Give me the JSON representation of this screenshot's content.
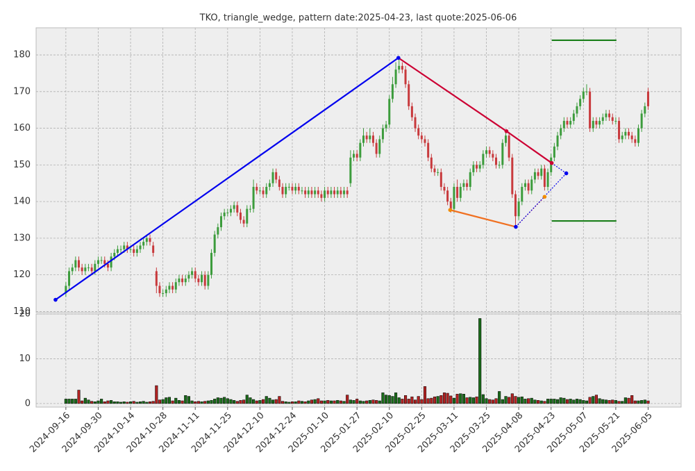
{
  "chart_data": [
    {
      "type": "candlestick",
      "title": "TKO, triangle_wedge, pattern date:2025-04-23, last quote:2025-06-06",
      "open": [
        115,
        117,
        121,
        122,
        124,
        122,
        121,
        122,
        122,
        121,
        123,
        124,
        124,
        123,
        122,
        125,
        126,
        127,
        127,
        128,
        127,
        127,
        126,
        127,
        128,
        129,
        130,
        128,
        121,
        117,
        115,
        115,
        116,
        117,
        116,
        118,
        119,
        118,
        119,
        120,
        121,
        119,
        118,
        120,
        117,
        120,
        126,
        131,
        133,
        136,
        137,
        137,
        138,
        139,
        137,
        135,
        134,
        138,
        138,
        144,
        143,
        143,
        142,
        144,
        145,
        148,
        146,
        144,
        142,
        144,
        144,
        143,
        144,
        143,
        143,
        142,
        143,
        142,
        143,
        142,
        141,
        143,
        142,
        143,
        142,
        143,
        142,
        143,
        145,
        152,
        153,
        152,
        156,
        158,
        157,
        158,
        156,
        153,
        157,
        160,
        161,
        168,
        172,
        176,
        177,
        176,
        172,
        166,
        163,
        160,
        158,
        157,
        156,
        152,
        149,
        148,
        148,
        144,
        143,
        140,
        138,
        144,
        141,
        144,
        145,
        144,
        148,
        150,
        149,
        150,
        153,
        154,
        153,
        152,
        150,
        150,
        156,
        158,
        152,
        142,
        136,
        140,
        144,
        145,
        143,
        146,
        148,
        147,
        149,
        144,
        148,
        152,
        155,
        158,
        160,
        162,
        161,
        162,
        164,
        166,
        168,
        170,
        170,
        160,
        162,
        161,
        162,
        163,
        164,
        163,
        162,
        162,
        157,
        158,
        159,
        158,
        157,
        156,
        160,
        164,
        170
      ],
      "high": [
        118,
        122,
        123,
        125,
        125,
        123,
        123,
        123,
        123,
        124,
        125,
        125,
        125,
        124,
        126,
        127,
        128,
        128,
        129,
        129,
        128,
        128,
        128,
        129,
        130,
        131,
        131,
        129,
        122,
        118,
        116,
        117,
        118,
        118,
        119,
        120,
        120,
        120,
        121,
        122,
        122,
        120,
        121,
        121,
        121,
        127,
        132,
        134,
        137,
        138,
        138,
        139,
        140,
        140,
        138,
        136,
        139,
        139,
        146,
        145,
        144,
        144,
        145,
        146,
        149,
        149,
        147,
        145,
        145,
        145,
        145,
        145,
        145,
        144,
        144,
        144,
        144,
        144,
        144,
        143,
        144,
        144,
        144,
        144,
        144,
        144,
        144,
        144,
        154,
        154,
        154,
        157,
        160,
        159,
        160,
        159,
        157,
        158,
        161,
        162,
        169,
        174,
        178,
        179,
        178,
        177,
        173,
        167,
        164,
        161,
        159,
        158,
        157,
        153,
        150,
        149,
        149,
        145,
        144,
        141,
        145,
        146,
        145,
        146,
        146,
        149,
        151,
        151,
        151,
        154,
        155,
        155,
        154,
        153,
        151,
        157,
        159,
        159,
        153,
        143,
        141,
        145,
        146,
        146,
        147,
        149,
        149,
        150,
        150,
        149,
        153,
        156,
        159,
        161,
        163,
        163,
        163,
        165,
        167,
        169,
        171,
        172,
        171,
        163,
        163,
        163,
        164,
        165,
        165,
        164,
        163,
        163,
        159,
        160,
        160,
        159,
        158,
        161,
        165,
        167,
        171
      ],
      "low": [
        114,
        116,
        120,
        121,
        121,
        120,
        120,
        121,
        120,
        120,
        122,
        123,
        122,
        121,
        121,
        124,
        125,
        126,
        126,
        126,
        126,
        125,
        125,
        126,
        127,
        128,
        128,
        125,
        115,
        114,
        114,
        114,
        115,
        115,
        115,
        117,
        117,
        117,
        118,
        119,
        118,
        117,
        117,
        116,
        116,
        119,
        125,
        130,
        132,
        135,
        136,
        136,
        137,
        136,
        134,
        133,
        133,
        137,
        137,
        142,
        142,
        141,
        141,
        143,
        144,
        145,
        143,
        141,
        141,
        143,
        142,
        142,
        142,
        142,
        141,
        141,
        141,
        141,
        141,
        140,
        140,
        141,
        141,
        141,
        141,
        141,
        141,
        141,
        144,
        151,
        151,
        151,
        155,
        156,
        156,
        155,
        152,
        152,
        156,
        159,
        160,
        167,
        171,
        175,
        175,
        171,
        165,
        162,
        159,
        157,
        156,
        155,
        151,
        148,
        147,
        147,
        143,
        142,
        139,
        137,
        137,
        140,
        140,
        143,
        143,
        143,
        147,
        148,
        148,
        149,
        152,
        152,
        151,
        149,
        149,
        149,
        155,
        151,
        141,
        133,
        135,
        139,
        143,
        142,
        142,
        145,
        146,
        146,
        143,
        143,
        147,
        151,
        154,
        157,
        159,
        160,
        160,
        161,
        163,
        165,
        167,
        169,
        159,
        159,
        160,
        160,
        161,
        162,
        162,
        161,
        161,
        156,
        156,
        157,
        157,
        156,
        155,
        155,
        159,
        163,
        165
      ],
      "close": [
        117,
        121,
        122,
        124,
        122,
        121,
        122,
        122,
        121,
        123,
        124,
        124,
        123,
        122,
        125,
        126,
        127,
        127,
        128,
        127,
        127,
        126,
        127,
        128,
        129,
        130,
        129,
        126,
        117,
        115,
        115,
        116,
        117,
        116,
        118,
        119,
        118,
        119,
        120,
        121,
        119,
        118,
        120,
        117,
        120,
        126,
        131,
        133,
        136,
        137,
        137,
        138,
        139,
        137,
        135,
        134,
        138,
        138,
        144,
        143,
        143,
        142,
        144,
        145,
        148,
        146,
        144,
        142,
        144,
        144,
        143,
        144,
        143,
        143,
        142,
        143,
        142,
        143,
        142,
        141,
        143,
        142,
        143,
        142,
        143,
        142,
        143,
        142,
        152,
        153,
        152,
        156,
        158,
        157,
        158,
        156,
        153,
        157,
        160,
        161,
        168,
        172,
        176,
        177,
        176,
        172,
        166,
        163,
        160,
        158,
        157,
        156,
        152,
        149,
        148,
        148,
        144,
        143,
        140,
        138,
        144,
        141,
        144,
        145,
        144,
        148,
        150,
        149,
        150,
        153,
        154,
        153,
        152,
        150,
        150,
        156,
        158,
        152,
        142,
        136,
        140,
        144,
        145,
        143,
        146,
        148,
        147,
        149,
        144,
        148,
        152,
        155,
        158,
        160,
        162,
        161,
        162,
        164,
        166,
        168,
        170,
        170,
        160,
        162,
        161,
        162,
        163,
        164,
        163,
        162,
        162,
        157,
        158,
        159,
        158,
        157,
        156,
        160,
        164,
        166,
        166
      ],
      "up_color": "#3c9c3c",
      "down_color": "#c8393c",
      "xlim": [
        -9.2,
        190.2
      ],
      "ylim": [
        109.7,
        187.4
      ],
      "yticks": [
        110,
        120,
        130,
        140,
        150,
        160,
        170,
        180
      ],
      "grid": true,
      "overlays": [
        {
          "color": "#0000ee",
          "dashed": false,
          "x": [
            -3.2,
            102.8
          ],
          "y": [
            113.2,
            179.2
          ]
        },
        {
          "color": "#cc0033",
          "dashed": false,
          "x": [
            102.8,
            136.2,
            150.2
          ],
          "y": [
            179.2,
            159.2,
            150.5
          ]
        },
        {
          "color": "#f07020",
          "dashed": false,
          "x": [
            118.8,
            139.1
          ],
          "y": [
            137.7,
            133.1
          ]
        },
        {
          "color": "#dd2222",
          "dashed": true,
          "x": [
            139.1,
            148.0
          ],
          "y": [
            133.1,
            141.3
          ]
        },
        {
          "color": "#0000ee",
          "dashed": true,
          "x": [
            139.1,
            154.7
          ],
          "y": [
            133.1,
            147.7
          ]
        },
        {
          "color": "#0000ee",
          "dashed": true,
          "x": [
            150.2,
            154.7
          ],
          "y": [
            150.5,
            147.7
          ]
        },
        {
          "color": "#1a7f1a",
          "dashed": false,
          "x": [
            150.2,
            170.2
          ],
          "y": [
            184.0,
            184.0
          ]
        },
        {
          "color": "#1a7f1a",
          "dashed": false,
          "x": [
            150.2,
            170.2
          ],
          "y": [
            134.7,
            134.7
          ]
        }
      ],
      "points": [
        {
          "color": "#0000ee",
          "x": [
            -3.2,
            102.8,
            139.1,
            154.7
          ],
          "y": [
            113.2,
            179.2,
            133.1,
            147.7
          ]
        },
        {
          "color": "#cc0033",
          "x": [
            136.2,
            150.2
          ],
          "y": [
            159.2,
            150.5
          ]
        },
        {
          "color": "#f08c00",
          "x": [
            118.8,
            148.0
          ],
          "y": [
            137.7,
            141.3
          ]
        }
      ]
    },
    {
      "type": "bar",
      "values": [
        1,
        1,
        1,
        1,
        3,
        0.6,
        1.2,
        0.8,
        0.5,
        0.4,
        0.6,
        1,
        0.4,
        0.6,
        0.7,
        0.4,
        0.4,
        0.3,
        0.4,
        0.3,
        0.4,
        0.5,
        0.3,
        0.4,
        0.5,
        0.3,
        0.4,
        0.5,
        4,
        0.8,
        0.9,
        1.3,
        1.4,
        0.6,
        1.2,
        0.7,
        0.6,
        1.8,
        1.6,
        0.6,
        0.4,
        0.5,
        0.4,
        0.5,
        0.6,
        0.7,
        1,
        1.3,
        1.2,
        1.4,
        1.1,
        0.9,
        0.7,
        0.5,
        0.7,
        0.8,
        1.9,
        1.3,
        0.9,
        0.6,
        0.7,
        0.9,
        1.6,
        1.2,
        0.8,
        0.9,
        1.6,
        0.5,
        0.4,
        0.3,
        0.4,
        0.4,
        0.6,
        0.5,
        0.4,
        0.6,
        0.8,
        0.9,
        1.1,
        0.6,
        0.6,
        0.7,
        0.6,
        0.6,
        0.7,
        0.6,
        0.5,
        1.9,
        0.8,
        0.7,
        1,
        0.6,
        0.5,
        0.6,
        0.7,
        0.8,
        0.7,
        0.6,
        2.4,
        1.9,
        1.8,
        1.6,
        2.4,
        1.3,
        1,
        1.8,
        1,
        1.5,
        0.8,
        1.6,
        0.9,
        3.8,
        1.1,
        1.2,
        1.5,
        1.6,
        1.8,
        2.4,
        2.3,
        1.7,
        1.2,
        2.1,
        2.2,
        2.1,
        1.3,
        1.4,
        1.3,
        1.5,
        19,
        2,
        1.1,
        0.9,
        0.8,
        1.1,
        2.7,
        0.9,
        1.6,
        1.4,
        2.2,
        1.6,
        1.4,
        1.5,
        1,
        1.1,
        1.2,
        0.8,
        0.7,
        0.6,
        0.5,
        1,
        1,
        1,
        0.9,
        1.3,
        1.2,
        0.9,
        1,
        0.8,
        1,
        0.9,
        0.7,
        0.6,
        1.4,
        1.6,
        1.9,
        1.1,
        0.9,
        0.8,
        0.7,
        0.8,
        0.7,
        0.5,
        0.5,
        1.3,
        1.2,
        1.8,
        0.6,
        0.6,
        0.7,
        0.8,
        0.6
      ],
      "up_color": "#1a6b1a",
      "down_color": "#b22222",
      "edge_color": "#000000",
      "xlim": [
        -9.2,
        190.2
      ],
      "ylim": [
        -0.8,
        20
      ],
      "yticks": [
        0,
        10,
        20
      ],
      "grid": true,
      "xticks": [
        {
          "value": 0,
          "label": "2024-09-16"
        },
        {
          "value": 10,
          "label": "2024-09-30"
        },
        {
          "value": 20,
          "label": "2024-10-14"
        },
        {
          "value": 30,
          "label": "2024-10-28"
        },
        {
          "value": 40,
          "label": "2024-11-11"
        },
        {
          "value": 50,
          "label": "2024-11-25"
        },
        {
          "value": 60,
          "label": "2024-12-10"
        },
        {
          "value": 70,
          "label": "2024-12-24"
        },
        {
          "value": 80,
          "label": "2025-01-10"
        },
        {
          "value": 90,
          "label": "2025-01-27"
        },
        {
          "value": 100,
          "label": "2025-02-10"
        },
        {
          "value": 110,
          "label": "2025-02-25"
        },
        {
          "value": 120,
          "label": "2025-03-11"
        },
        {
          "value": 130,
          "label": "2025-03-25"
        },
        {
          "value": 140,
          "label": "2025-04-08"
        },
        {
          "value": 150,
          "label": "2025-04-23"
        },
        {
          "value": 160,
          "label": "2025-05-07"
        },
        {
          "value": 170,
          "label": "2025-05-21"
        },
        {
          "value": 180,
          "label": "2025-06-05"
        }
      ]
    }
  ]
}
